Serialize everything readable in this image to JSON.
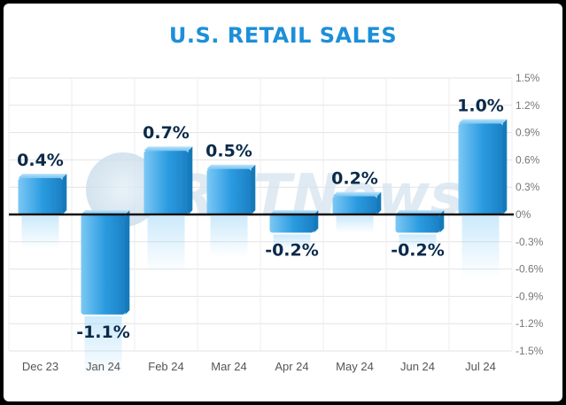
{
  "chart_data": {
    "type": "bar",
    "title": "U.S. RETAIL SALES",
    "categories": [
      "Dec 23",
      "Jan 24",
      "Feb 24",
      "Mar 24",
      "Apr 24",
      "May 24",
      "Jun 24",
      "Jul 24"
    ],
    "values": [
      0.4,
      -1.1,
      0.7,
      0.5,
      -0.2,
      0.2,
      -0.2,
      1.0
    ],
    "data_labels": [
      "0.4%",
      "-1.1%",
      "0.7%",
      "0.5%",
      "-0.2%",
      "0.2%",
      "-0.2%",
      "1.0%"
    ],
    "y_ticks": [
      1.5,
      1.2,
      0.9,
      0.6,
      0.3,
      0,
      -0.3,
      -0.6,
      -0.9,
      -1.2,
      -1.5
    ],
    "y_tick_labels": [
      "1.5%",
      "1.2%",
      "0.9%",
      "0.6%",
      "0.3%",
      "0%",
      "-0.3%",
      "-0.6%",
      "-0.9%",
      "-1.2%",
      "-1.5%"
    ],
    "ylim": [
      -1.5,
      1.5
    ],
    "y_axis_position": "right",
    "grid": true,
    "xlabel": "",
    "ylabel": "",
    "colors": {
      "bar": "#2a9be0",
      "bar_light": "#8fd0f7",
      "title": "#1d8fd8",
      "label": "#0b2a4a",
      "zero_line": "#111111"
    }
  },
  "watermark": "RTTNews"
}
